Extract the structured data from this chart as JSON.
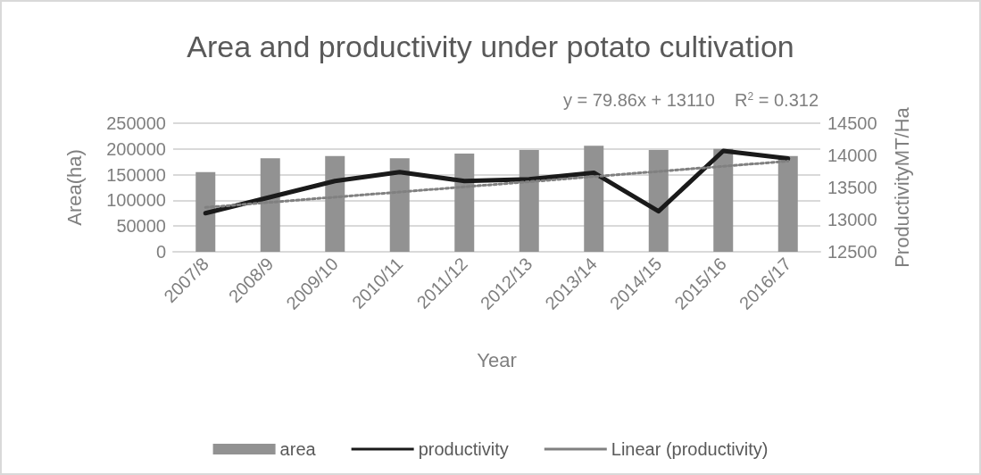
{
  "chart_data": {
    "type": "bar",
    "title": "Area and productivity under potato cultivation",
    "xlabel": "Year",
    "ylabel": "Area(ha)",
    "y2label": "ProductivityMT/Ha",
    "categories": [
      "2007/8",
      "2008/9",
      "2009/10",
      "2010/11",
      "2011/12",
      "2012/13",
      "2013/14",
      "2014/15",
      "2015/16",
      "2016/17"
    ],
    "series": [
      {
        "name": "area",
        "color": "#929292",
        "values": [
          155000,
          182000,
          186000,
          182000,
          191000,
          198000,
          206000,
          198000,
          200000,
          186000
        ]
      },
      {
        "name": "productivity",
        "type": "line",
        "axis": "y2",
        "color": "#1a1a1a",
        "line_style": "solid",
        "values": [
          13100,
          13350,
          13600,
          13740,
          13600,
          13630,
          13730,
          13130,
          14070,
          13950
        ]
      },
      {
        "name": "Linear (productivity)",
        "type": "line",
        "axis": "y2",
        "color": "#808080",
        "line_style": "dotted",
        "values": [
          13190,
          13270,
          13350,
          13430,
          13510,
          13590,
          13670,
          13750,
          13830,
          13910
        ]
      }
    ],
    "ylim": [
      0,
      250000
    ],
    "yticks": [
      0,
      50000,
      100000,
      150000,
      200000,
      250000
    ],
    "y2lim": [
      12500,
      14500
    ],
    "y2ticks": [
      12500,
      13000,
      13500,
      14000,
      14500
    ],
    "annotations": [
      "y = 79.86x + 13110",
      "R$^{2}$ = 0.312"
    ],
    "grid": "y",
    "legend": "bottom",
    "marker": "none"
  }
}
